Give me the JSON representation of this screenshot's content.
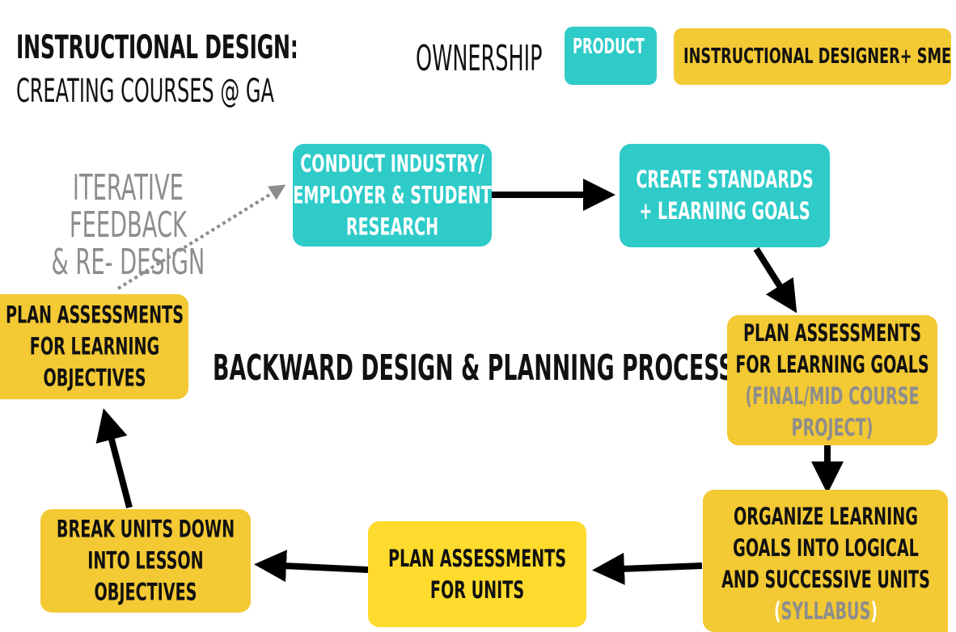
{
  "header": {
    "title": "INSTRUCTIONAL DESIGN:",
    "subtitle": "CREATING COURSES @ GA"
  },
  "legend": {
    "label": "OWNERSHIP",
    "product": "PRODUCT",
    "instructional_designer": "INSTRUCTIONAL DESIGNER+ SME"
  },
  "feedback": {
    "text": "ITERATIVE FEEDBACK\n& RE- DESIGN"
  },
  "center_label": "BACKWARD DESIGN & PLANNING PROCESS",
  "nodes": {
    "research": [
      "CONDUCT INDUSTRY/",
      "EMPLOYER & STUDENT",
      "RESEARCH"
    ],
    "standards": [
      "CREATE STANDARDS",
      "+ LEARNING GOALS"
    ],
    "assess_goals": [
      "PLAN ASSESSMENTS",
      "FOR LEARNING GOALS"
    ],
    "assess_goals_note": [
      "(FINAL/MID COURSE",
      "PROJECT)"
    ],
    "organize": [
      "ORGANIZE LEARNING",
      "GOALS INTO LOGICAL",
      "AND SUCCESSIVE UNITS"
    ],
    "organize_note": "SYLLABUS",
    "organize_note_open": "(",
    "organize_note_close": ")",
    "assess_units": [
      "PLAN ASSESSMENTS",
      "FOR UNITS"
    ],
    "break_units": [
      "BREAK UNITS DOWN",
      "INTO LESSON",
      "OBJECTIVES"
    ],
    "assess_objectives": [
      "PLAN ASSESSMENTS",
      "FOR LEARNING",
      "OBJECTIVES"
    ]
  },
  "colors": {
    "product": "#2ecbc9",
    "instructional_designer": "#f3c934",
    "highlight": "#fedb2d",
    "feedback": "#8d8d8d",
    "arrow": "#000000"
  }
}
